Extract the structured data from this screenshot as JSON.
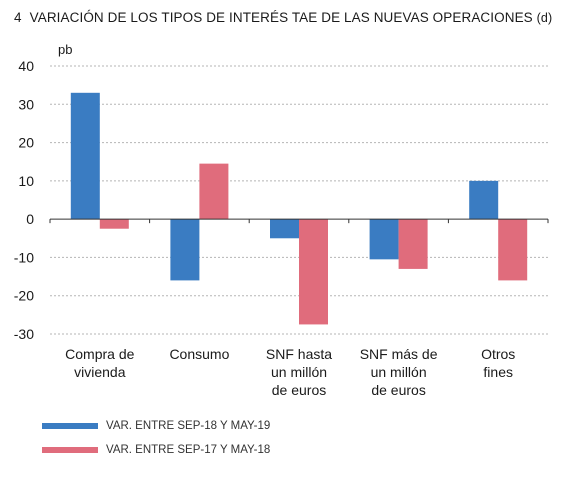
{
  "title": {
    "number": "4",
    "text": "VARIACIÓN DE LOS TIPOS DE INTERÉS TAE DE LAS NUEVAS OPERACIONES",
    "suffix": "(d)"
  },
  "colors": {
    "series1": "#3a7cc2",
    "series2": "#e06c7c",
    "grid": "#b5b5b5",
    "axis": "#333333"
  },
  "chart_data": {
    "type": "bar",
    "ylabel": "pb",
    "ylim": [
      -30,
      40
    ],
    "yticks": [
      40,
      30,
      20,
      10,
      0,
      -10,
      -20,
      -30
    ],
    "grid": true,
    "legend_position": "bottom",
    "categories": [
      [
        "Compra de",
        "vivienda"
      ],
      [
        "Consumo"
      ],
      [
        "SNF hasta",
        "un millón",
        "de euros"
      ],
      [
        "SNF más de",
        "un millón",
        "de euros"
      ],
      [
        "Otros",
        "fines"
      ]
    ],
    "series": [
      {
        "name": "VAR. ENTRE SEP-18 Y MAY-19",
        "values": [
          33,
          -16,
          -5,
          -10.5,
          10
        ]
      },
      {
        "name": "VAR. ENTRE SEP-17 Y MAY-18",
        "values": [
          -2.5,
          14.5,
          -27.5,
          -13,
          -16
        ]
      }
    ]
  }
}
